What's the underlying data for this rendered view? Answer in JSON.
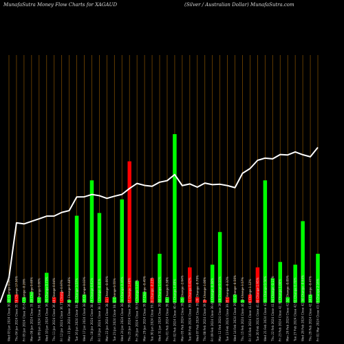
{
  "header": {
    "left": "MunafaSutra  Money Flow  Charts for XAGAUD",
    "right": "(Silver / Australian  Dollar) MunafaSutra.com"
  },
  "chart_data": {
    "type": "bar",
    "categories": [
      "Fri 01 Mar 2024 Close 43.05 Change 2.16%",
      "Thu 29 Feb 2024 Close 42.14 Change -0.47%",
      "Wed 28 Feb 2024 Close 42.34 Change -0.64%",
      "Tue 27 Feb 2024 Close 42.61 Change 0.70%",
      "Mon 26 Feb 2024 Close 42.32 Change -0.09%",
      "Fri 23 Feb 2024 Close 42.36 Change 1.00%",
      "Thu 22 Feb 2024 Close 41.94 Change -0.17%",
      "Wed 21 Feb 2024 Close 42.01 Change 0.50%",
      "Tue 20 Feb 2024 Close 41.80 Change 1.95%",
      "Fri 16 Feb 2024 Close 41.00 Change 1.12%",
      "Thu 15 Feb 2024 Close 40.54 Change 3.57%",
      "Wed 14 Feb 2024 Close 39.15 Change -0.50%",
      "Tue 13 Feb 2024 Close 39.35 Change -0.32%",
      "Mon 12 Feb 2024 Close 39.48 Change 0.11%",
      "Fri 09 Feb 2024 Close 39.44 Change -0.38%",
      "Thu 08 Feb 2024 Close 39.59 Change 1.00%",
      "Wed 07 Feb 2024 Close 39.20 Change -0.79%",
      "Tue 06 Feb 2024 Close 39.51 Change 0.42%",
      "Mon 05 Feb 2024 Close 39.35 Change -2.64%",
      "Fri 02 Feb 2024 Close 40.42 Change 1.49%",
      "Thu 01 Feb 2024 Close 39.83 Change 0.38%",
      "Wed 31 Jan 2024 Close 39.68 Change 1.02%",
      "Tue 30 Jan 2024 Close 39.28 Change -0.23%",
      "Mon 29 Jan 2024 Close 39.37 Change -0.49%",
      "Fri 26 Jan 2024 Close 39.56 Change 1.27%",
      "Thu 25 Jan 2024 Close 39.07 Change 1.48%",
      "Wed 24 Jan 2024 Close 38.50 Change 0.46%",
      "Tue 23 Jan 2024 Close 38.32 Change 0.55%",
      "Mon 22 Jan 2024 Close 38.11 Change -0.69%",
      "Fri 19 Jan 2024 Close 38.37 Change -0.31%",
      "Thu 18 Jan 2024 Close 38.49 Change 0.61%",
      "Wed 17 Jan 2024 Close 38.26 Change 0.03%",
      "Tue 16 Jan 2024 Close 38.25 Change 3.57%",
      "Mon 15 Jan 2024 Close 36.93 Change 0.48%",
      "Fri 12 Jan 2024 Close 36.75 Change 0.97%",
      "Thu 11 Jan 2024 Close 36.40 Change 0.04%",
      "Wed 10 Jan 2024 Close 36.39 Change 0.73%",
      "Tue 09 Jan 2024 Close 36.13 Change 0.66%",
      "Mon 08 Jan 2024 Close 35.89 Change 0.69%",
      "Fri 05 Jan 2024 Close 35.64 Change -0.28%",
      "Thu 04 Jan 2024 Close 35.74 Change 17.56%",
      "Wed 03 Jan 2024 Close 30.40 Change 0.00%"
    ],
    "close": [
      43.05,
      42.14,
      42.34,
      42.61,
      42.32,
      42.36,
      41.94,
      42.01,
      41.8,
      41.0,
      40.54,
      39.15,
      39.35,
      39.48,
      39.44,
      39.59,
      39.2,
      39.51,
      39.35,
      40.42,
      39.83,
      39.68,
      39.28,
      39.37,
      39.56,
      39.07,
      38.5,
      38.32,
      38.11,
      38.37,
      38.49,
      38.26,
      38.25,
      36.93,
      36.75,
      36.4,
      36.39,
      36.13,
      35.89,
      35.64,
      35.74,
      30.4
    ],
    "money_flow": [
      18,
      3,
      30,
      14,
      2,
      15,
      9,
      45,
      13,
      3,
      1,
      3,
      2,
      26,
      14,
      1,
      2,
      13,
      2,
      62,
      2,
      18,
      9,
      4,
      8,
      52,
      38,
      2,
      2,
      33,
      45,
      3,
      32,
      1,
      4,
      2,
      11,
      2,
      4,
      2,
      3,
      3
    ],
    "flow_direction": [
      "up",
      "up",
      "up",
      "up",
      "up",
      "up",
      "up",
      "up",
      "down",
      "down",
      "up",
      "up",
      "down",
      "up",
      "up",
      "down",
      "down",
      "down",
      "up",
      "up",
      "up",
      "up",
      "down",
      "up",
      "up",
      "down",
      "up",
      "up",
      "down",
      "up",
      "up",
      "up",
      "up",
      "up",
      "down",
      "down",
      "up",
      "up",
      "up",
      "up",
      "down",
      "up"
    ],
    "colors": {
      "up": "#00ff00",
      "down": "#ff0000",
      "line": "#ffffff",
      "grid": "#7a4a00",
      "background": "#000000"
    },
    "grid": true,
    "title": "",
    "xlabel": "",
    "ylabel": ""
  }
}
